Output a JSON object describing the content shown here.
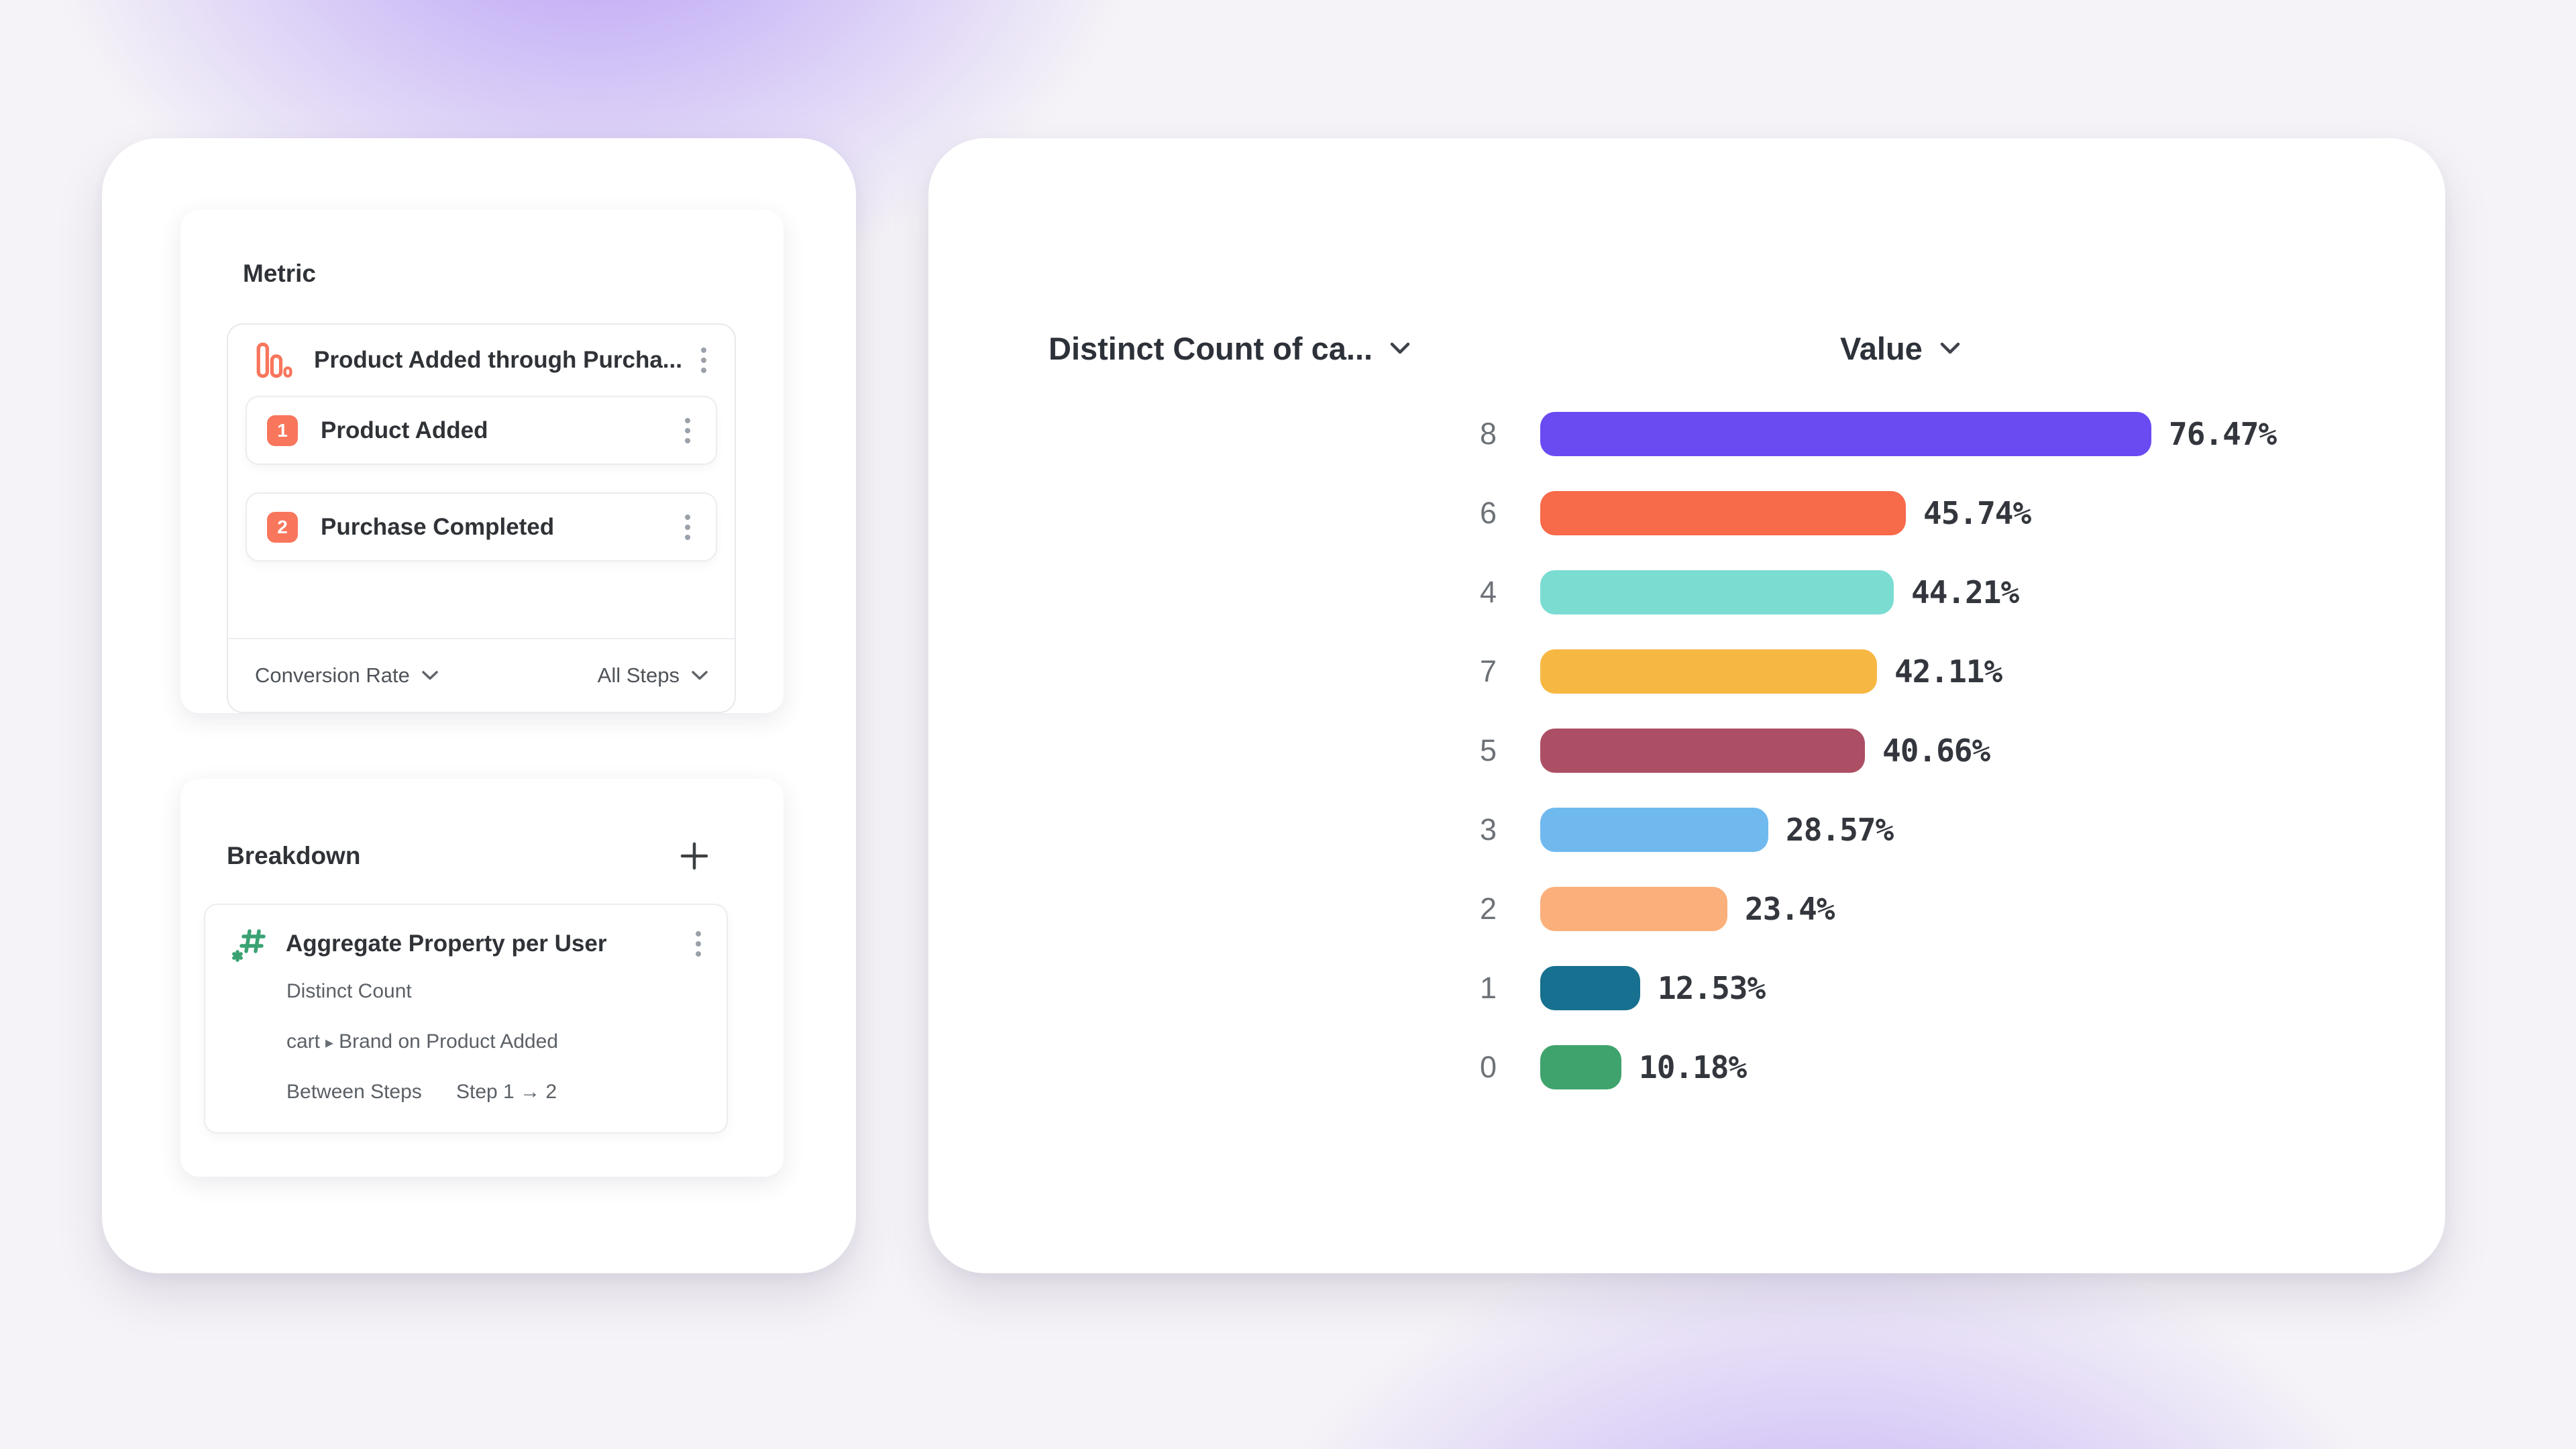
{
  "colors": {
    "accent_coral": "#f8765c",
    "icon_green": "#3ba273",
    "text_dark": "#2f3237",
    "text_gray": "#5f6368",
    "background_accent": "#8f67f6"
  },
  "icons": {
    "metric_type": "funnel-bars-icon",
    "breakdown_type": "hash-asterisk-icon",
    "row_menu": "kebab-menu-icon",
    "add": "plus-icon",
    "dropdown": "chevron-down-icon"
  },
  "metric_panel": {
    "title": "Metric",
    "funnel": {
      "label": "Product Added through Purcha...",
      "steps": [
        {
          "number": "1",
          "label": "Product Added"
        },
        {
          "number": "2",
          "label": "Purchase Completed"
        }
      ],
      "footer": {
        "conversion_label": "Conversion Rate",
        "steps_label": "All Steps"
      }
    }
  },
  "breakdown_panel": {
    "title": "Breakdown",
    "item": {
      "title": "Aggregate Property per User",
      "aggregation": "Distinct Count",
      "property": {
        "prefix": "cart",
        "separator": "▸",
        "suffix": "Brand on Product Added"
      },
      "between": {
        "label": "Between Steps",
        "value": "Step 1 → 2"
      }
    }
  },
  "chart": {
    "category_header": "Distinct Count of ca...",
    "value_header": "Value"
  },
  "chart_data": {
    "type": "bar",
    "orientation": "horizontal",
    "title": "",
    "category_axis_label": "Distinct Count of ca...",
    "value_axis_label": "Value",
    "categories": [
      "8",
      "6",
      "4",
      "7",
      "5",
      "3",
      "2",
      "1",
      "0"
    ],
    "values": [
      76.47,
      45.74,
      44.21,
      42.11,
      40.66,
      28.57,
      23.4,
      12.53,
      10.18
    ],
    "value_labels": [
      "76.47%",
      "45.74%",
      "44.21%",
      "42.11%",
      "40.66%",
      "28.57%",
      "23.4%",
      "12.53%",
      "10.18%"
    ],
    "bar_colors": [
      "#6a4bf1",
      "#f76a4a",
      "#7bdcd2",
      "#f7b843",
      "#ad4f64",
      "#6fb9ef",
      "#fbaf7a",
      "#17708f",
      "#3fa36d"
    ],
    "value_unit": "%",
    "value_range": [
      0,
      100
    ],
    "grid": false,
    "legend": false
  }
}
